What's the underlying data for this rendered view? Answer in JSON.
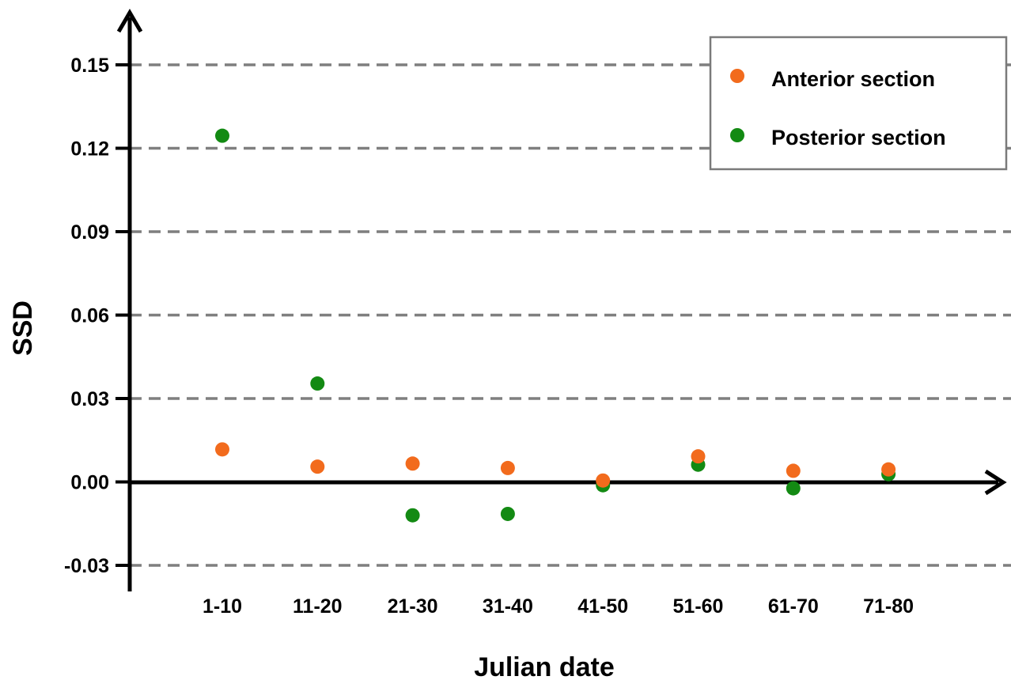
{
  "chart_data": {
    "type": "scatter",
    "title": "",
    "xlabel": "Julian date",
    "ylabel": "SSD",
    "categories": [
      "1-10",
      "11-20",
      "21-30",
      "31-40",
      "41-50",
      "51-60",
      "61-70",
      "71-80"
    ],
    "ylim": [
      -0.03,
      0.15
    ],
    "yticks": [
      "0.15",
      "0.12",
      "0.09",
      "0.06",
      "0.03",
      "0.00",
      "-0.03"
    ],
    "ytick_values": [
      0.15,
      0.12,
      0.09,
      0.06,
      0.03,
      0.0,
      -0.03
    ],
    "grid": "horizontal dashed",
    "legend_position": "top-right",
    "series": [
      {
        "name": "Anterior section",
        "color": "#f26b1d",
        "values": [
          0.0117,
          0.0055,
          0.0066,
          0.005,
          0.0005,
          0.0092,
          0.004,
          0.0045
        ]
      },
      {
        "name": "Posterior section",
        "color": "#138a13",
        "values": [
          0.1245,
          0.0354,
          -0.012,
          -0.0115,
          -0.0012,
          0.0062,
          -0.0023,
          0.0028
        ]
      }
    ]
  }
}
